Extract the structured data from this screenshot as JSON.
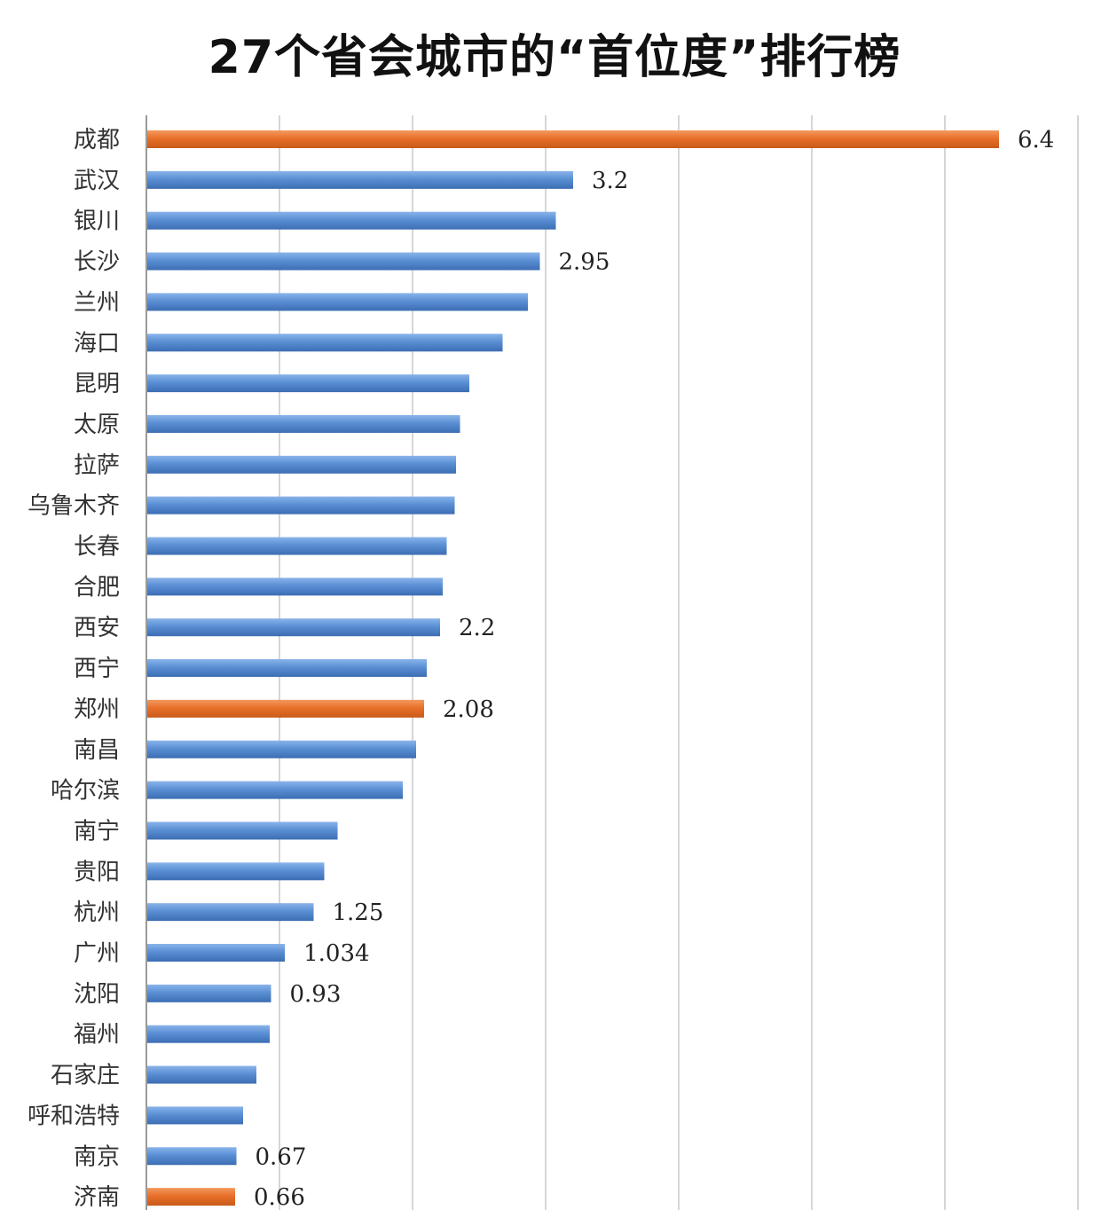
{
  "chart_data": {
    "type": "bar",
    "orientation": "horizontal",
    "title": "27个省会城市的“首位度”排行榜",
    "xlabel": "",
    "ylabel": "",
    "xlim": [
      0,
      7
    ],
    "grid": true,
    "colors": {
      "default": "#5a8fd4",
      "highlight": "#e8702a"
    },
    "categories": [
      "成都",
      "武汉",
      "银川",
      "长沙",
      "兰州",
      "海口",
      "昆明",
      "太原",
      "拉萨",
      "乌鲁木齐",
      "长春",
      "合肥",
      "西安",
      "西宁",
      "郑州",
      "南昌",
      "哈尔滨",
      "南宁",
      "贵阳",
      "杭州",
      "广州",
      "沈阳",
      "福州",
      "石家庄",
      "呼和浩特",
      "南京",
      "济南"
    ],
    "values": [
      6.4,
      3.2,
      3.07,
      2.95,
      2.86,
      2.67,
      2.42,
      2.35,
      2.32,
      2.31,
      2.25,
      2.22,
      2.2,
      2.1,
      2.08,
      2.02,
      1.92,
      1.43,
      1.33,
      1.25,
      1.034,
      0.93,
      0.92,
      0.82,
      0.72,
      0.67,
      0.66
    ],
    "highlighted": [
      "成都",
      "郑州",
      "济南"
    ],
    "data_labels": [
      {
        "category": "成都",
        "text": "6.4"
      },
      {
        "category": "武汉",
        "text": "3.2"
      },
      {
        "category": "长沙",
        "text": "2.95"
      },
      {
        "category": "西安",
        "text": "2.2"
      },
      {
        "category": "郑州",
        "text": "2.08"
      },
      {
        "category": "杭州",
        "text": "1.25"
      },
      {
        "category": "广州",
        "text": "1.034"
      },
      {
        "category": "沈阳",
        "text": "0.93"
      },
      {
        "category": "南京",
        "text": "0.67"
      },
      {
        "category": "济南",
        "text": "0.66"
      }
    ]
  }
}
